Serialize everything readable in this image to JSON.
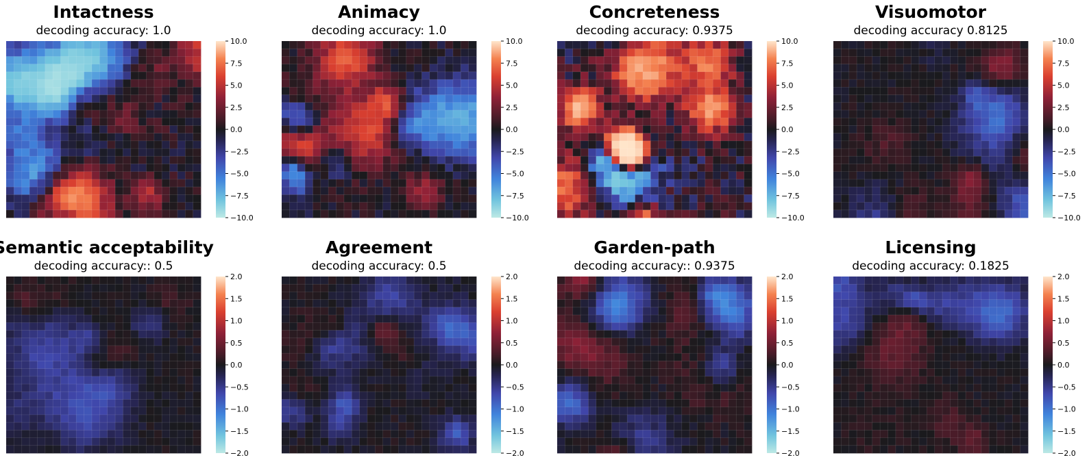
{
  "figure": {
    "colormap_name": "icefire"
  },
  "chart_data": [
    {
      "type": "heatmap",
      "title": "Intactness",
      "subtitle": "decoding accuracy: 1.0",
      "grid": [
        25,
        23
      ],
      "colorbar": {
        "min": -10,
        "max": 10,
        "ticks": [
          "10.0",
          "7.5",
          "5.0",
          "2.5",
          "0.0",
          "−2.5",
          "−5.0",
          "−7.5",
          "−10.0"
        ]
      },
      "seed": 11,
      "intensity": 1.0,
      "blobs": 18
    },
    {
      "type": "heatmap",
      "title": "Animacy",
      "subtitle": "decoding accuracy:  1.0",
      "grid": [
        25,
        23
      ],
      "colorbar": {
        "min": -10,
        "max": 10,
        "ticks": [
          "10.0",
          "7.5",
          "5.0",
          "2.5",
          "0.0",
          "−2.5",
          "−5.0",
          "−7.5",
          "−10.0"
        ]
      },
      "seed": 23,
      "intensity": 0.85,
      "blobs": 18
    },
    {
      "type": "heatmap",
      "title": "Concreteness",
      "subtitle": "decoding accuracy: 0.9375",
      "grid": [
        25,
        23
      ],
      "colorbar": {
        "min": -10,
        "max": 10,
        "ticks": [
          "10.0",
          "7.5",
          "5.0",
          "2.5",
          "0.0",
          "−2.5",
          "−5.0",
          "−7.5",
          "−10.0"
        ]
      },
      "seed": 37,
      "intensity": 1.7,
      "blobs": 14
    },
    {
      "type": "heatmap",
      "title": "Visuomotor",
      "subtitle": "decoding accuracy 0.8125",
      "grid": [
        25,
        23
      ],
      "colorbar": {
        "min": -10,
        "max": 10,
        "ticks": [
          "10.0",
          "7.5",
          "5.0",
          "2.5",
          "0.0",
          "−2.5",
          "−5.0",
          "−7.5",
          "−10.0"
        ]
      },
      "seed": 41,
      "intensity": 0.45,
      "blobs": 16
    },
    {
      "type": "heatmap",
      "title": "Semantic acceptability",
      "subtitle": "decoding accuracy:: 0.5",
      "grid": [
        25,
        23
      ],
      "colorbar": {
        "min": -2,
        "max": 2,
        "ticks": [
          "2.0",
          "1.5",
          "1.0",
          "0.5",
          "0.0",
          "−0.5",
          "−1.0",
          "−1.5",
          "−2.0"
        ]
      },
      "seed": 53,
      "intensity": 0.35,
      "blobs": 16
    },
    {
      "type": "heatmap",
      "title": "Agreement",
      "subtitle": "decoding accuracy:  0.5",
      "grid": [
        25,
        23
      ],
      "colorbar": {
        "min": -2,
        "max": 2,
        "ticks": [
          "2.0",
          "1.5",
          "1.0",
          "0.5",
          "0.0",
          "−0.5",
          "−1.0",
          "−1.5",
          "−2.0"
        ]
      },
      "seed": 67,
      "intensity": 0.4,
      "blobs": 16
    },
    {
      "type": "heatmap",
      "title": "Garden-path",
      "subtitle": "decoding accuracy:: 0.9375",
      "grid": [
        25,
        23
      ],
      "colorbar": {
        "min": -2,
        "max": 2,
        "ticks": [
          "2.0",
          "1.5",
          "1.0",
          "0.5",
          "0.0",
          "−0.5",
          "−1.0",
          "−1.5",
          "−2.0"
        ]
      },
      "seed": 79,
      "intensity": 0.5,
      "blobs": 16
    },
    {
      "type": "heatmap",
      "title": "Licensing",
      "subtitle": "decoding accuracy: 0.1825",
      "grid": [
        25,
        23
      ],
      "colorbar": {
        "min": -2,
        "max": 2,
        "ticks": [
          "2.0",
          "1.5",
          "1.0",
          "0.5",
          "0.0",
          "−0.5",
          "−1.0",
          "−1.5",
          "−2.0"
        ]
      },
      "seed": 97,
      "intensity": 0.35,
      "blobs": 16
    }
  ]
}
